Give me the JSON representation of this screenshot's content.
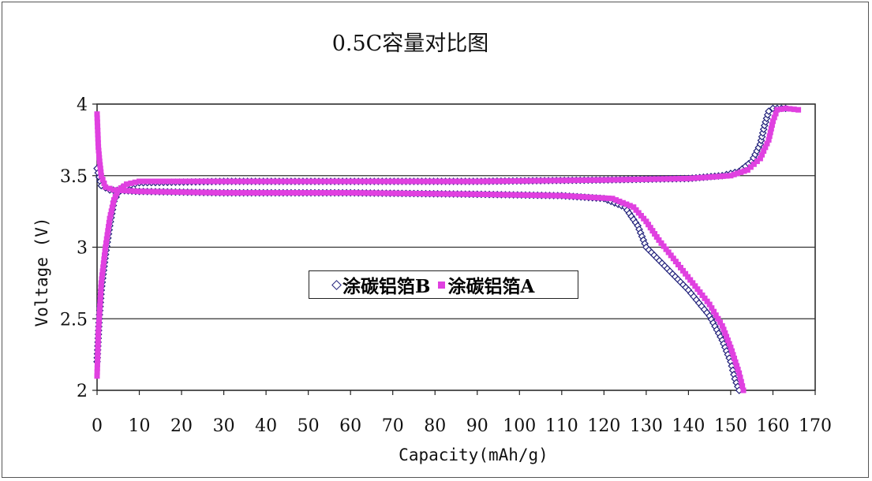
{
  "chart_data": {
    "type": "scatter",
    "title": "0.5C容量对比图",
    "xlabel": "Capacity(mAh/g)",
    "ylabel": "Voltage (V)",
    "xlim": [
      0,
      170
    ],
    "ylim": [
      2,
      4
    ],
    "xticks": [
      "0",
      "10",
      "20",
      "30",
      "40",
      "50",
      "60",
      "70",
      "80",
      "90",
      "100",
      "110",
      "120",
      "130",
      "140",
      "150",
      "160",
      "170"
    ],
    "yticks": [
      "2",
      "2.5",
      "3",
      "3.5",
      "4"
    ],
    "grid": "horizontal",
    "legend_position": "center",
    "series": [
      {
        "name": "涂碳铝箔B",
        "color": "#1f1f7a",
        "marker": "diamond",
        "charge": [
          [
            0,
            2.2
          ],
          [
            0.5,
            2.5
          ],
          [
            1,
            2.7
          ],
          [
            2,
            2.95
          ],
          [
            3,
            3.15
          ],
          [
            4,
            3.32
          ],
          [
            5,
            3.38
          ],
          [
            6,
            3.42
          ],
          [
            10,
            3.45
          ],
          [
            30,
            3.46
          ],
          [
            60,
            3.46
          ],
          [
            90,
            3.46
          ],
          [
            120,
            3.47
          ],
          [
            140,
            3.48
          ],
          [
            148,
            3.5
          ],
          [
            152,
            3.53
          ],
          [
            155,
            3.6
          ],
          [
            157,
            3.72
          ],
          [
            158,
            3.85
          ],
          [
            159,
            3.95
          ],
          [
            160,
            3.97
          ],
          [
            163,
            3.97
          ]
        ],
        "discharge": [
          [
            0,
            3.55
          ],
          [
            1,
            3.43
          ],
          [
            3,
            3.4
          ],
          [
            10,
            3.39
          ],
          [
            30,
            3.38
          ],
          [
            60,
            3.38
          ],
          [
            90,
            3.37
          ],
          [
            110,
            3.36
          ],
          [
            120,
            3.34
          ],
          [
            125,
            3.28
          ],
          [
            128,
            3.15
          ],
          [
            130,
            3.0
          ],
          [
            135,
            2.85
          ],
          [
            140,
            2.7
          ],
          [
            145,
            2.52
          ],
          [
            148,
            2.35
          ],
          [
            150,
            2.2
          ],
          [
            151,
            2.08
          ],
          [
            152,
            2.0
          ]
        ]
      },
      {
        "name": "涂碳铝箔A",
        "color": "#e040e0",
        "marker": "square",
        "charge": [
          [
            0,
            2.1
          ],
          [
            0.3,
            2.4
          ],
          [
            1,
            2.75
          ],
          [
            2,
            3.0
          ],
          [
            3,
            3.2
          ],
          [
            4,
            3.33
          ],
          [
            5,
            3.4
          ],
          [
            7,
            3.44
          ],
          [
            10,
            3.46
          ],
          [
            30,
            3.46
          ],
          [
            60,
            3.46
          ],
          [
            90,
            3.46
          ],
          [
            120,
            3.47
          ],
          [
            140,
            3.48
          ],
          [
            150,
            3.5
          ],
          [
            154,
            3.54
          ],
          [
            157,
            3.62
          ],
          [
            159,
            3.75
          ],
          [
            160,
            3.88
          ],
          [
            161,
            3.96
          ],
          [
            163,
            3.97
          ],
          [
            166,
            3.96
          ]
        ],
        "discharge": [
          [
            0,
            3.93
          ],
          [
            0.3,
            3.7
          ],
          [
            0.6,
            3.6
          ],
          [
            1,
            3.5
          ],
          [
            2,
            3.42
          ],
          [
            4,
            3.4
          ],
          [
            10,
            3.39
          ],
          [
            30,
            3.38
          ],
          [
            60,
            3.38
          ],
          [
            90,
            3.37
          ],
          [
            110,
            3.36
          ],
          [
            122,
            3.34
          ],
          [
            127,
            3.28
          ],
          [
            130,
            3.18
          ],
          [
            133,
            3.05
          ],
          [
            137,
            2.9
          ],
          [
            141,
            2.75
          ],
          [
            145,
            2.6
          ],
          [
            148,
            2.45
          ],
          [
            150,
            2.3
          ],
          [
            152,
            2.12
          ],
          [
            153,
            2.0
          ]
        ]
      }
    ]
  }
}
